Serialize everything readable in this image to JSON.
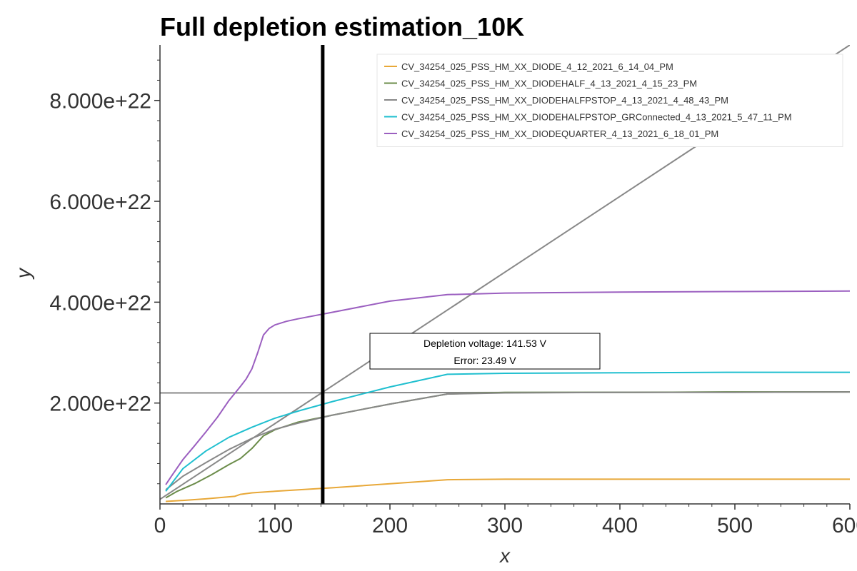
{
  "chart_data": {
    "type": "line",
    "title": "Full depletion estimation_10K",
    "xlabel": "x",
    "ylabel": "y",
    "xlim": [
      0,
      600
    ],
    "ylim": [
      0,
      9.1e+22
    ],
    "x_ticks": [
      {
        "value": 0,
        "label": "0"
      },
      {
        "value": 100,
        "label": "100"
      },
      {
        "value": 200,
        "label": "200"
      },
      {
        "value": 300,
        "label": "300"
      },
      {
        "value": 400,
        "label": "400"
      },
      {
        "value": 500,
        "label": "500"
      },
      {
        "value": 600,
        "label": "600"
      }
    ],
    "y_ticks": [
      {
        "value": 2e+22,
        "label": "2.000e+22"
      },
      {
        "value": 4e+22,
        "label": "4.000e+22"
      },
      {
        "value": 6e+22,
        "label": "6.000e+22"
      },
      {
        "value": 8e+22,
        "label": "8.000e+22"
      }
    ],
    "legend_position": "top-right",
    "grid": false,
    "series": [
      {
        "name": "CV_34254_025_PSS_HM_XX_DIODE_4_12_2021_6_14_04_PM",
        "color": "#e8a838",
        "x": [
          5,
          20,
          40,
          55,
          65,
          70,
          80,
          100,
          150,
          200,
          250,
          300,
          400,
          500,
          600
        ],
        "y": [
          5e+20,
          7e+20,
          1e+21,
          1.3e+21,
          1.5e+21,
          1.9e+21,
          2.2e+21,
          2.5e+21,
          3.2e+21,
          4e+21,
          4.8e+21,
          4.9e+21,
          4.9e+21,
          4.9e+21,
          4.9e+21
        ]
      },
      {
        "name": "CV_34254_025_PSS_HM_XX_DIODEHALF_4_13_2021_4_15_23_PM",
        "color": "#6b8c4a",
        "x": [
          5,
          15,
          30,
          45,
          60,
          70,
          80,
          90,
          100,
          120,
          150,
          200,
          250,
          300,
          400,
          500,
          600
        ],
        "y": [
          1.2e+21,
          2.5e+21,
          4e+21,
          5.8e+21,
          7.8e+21,
          9e+21,
          1.1e+22,
          1.35e+22,
          1.47e+22,
          1.62e+22,
          1.76e+22,
          1.98e+22,
          2.18e+22,
          2.21e+22,
          2.21e+22,
          2.22e+22,
          2.22e+22
        ]
      },
      {
        "name": "CV_34254_025_PSS_HM_XX_DIODEHALFPSTOP_4_13_2021_4_48_43_PM",
        "color": "#888888",
        "x": [
          5,
          20,
          40,
          60,
          80,
          100,
          120,
          150,
          200,
          250,
          300,
          400,
          500,
          600
        ],
        "y": [
          2.8e+21,
          5.5e+21,
          8.2e+21,
          1.08e+22,
          1.3e+22,
          1.48e+22,
          1.6e+22,
          1.76e+22,
          1.98e+22,
          2.18e+22,
          2.2e+22,
          2.21e+22,
          2.21e+22,
          2.22e+22
        ]
      },
      {
        "name": "CV_34254_025_PSS_HM_XX_DIODEHALFPSTOP_GRConnected_4_13_2021_5_47_11_PM",
        "color": "#1fbfcf",
        "x": [
          5,
          20,
          40,
          60,
          80,
          100,
          120,
          150,
          200,
          250,
          300,
          400,
          500,
          600
        ],
        "y": [
          2.5e+21,
          7e+21,
          1.05e+22,
          1.32e+22,
          1.52e+22,
          1.7e+22,
          1.84e+22,
          2.03e+22,
          2.32e+22,
          2.57e+22,
          2.59e+22,
          2.6e+22,
          2.61e+22,
          2.61e+22
        ]
      },
      {
        "name": "CV_34254_025_PSS_HM_XX_DIODEQUARTER_4_13_2021_6_18_01_PM",
        "color": "#9b5fc0",
        "x": [
          5,
          10,
          20,
          30,
          40,
          50,
          60,
          70,
          75,
          80,
          85,
          90,
          95,
          100,
          110,
          120,
          150,
          200,
          250,
          300,
          400,
          500,
          600
        ],
        "y": [
          3.8e+21,
          5.5e+21,
          8.8e+21,
          1.15e+22,
          1.43e+22,
          1.72e+22,
          2.05e+22,
          2.33e+22,
          2.48e+22,
          2.68e+22,
          3e+22,
          3.35e+22,
          3.48e+22,
          3.55e+22,
          3.62e+22,
          3.67e+22,
          3.8e+22,
          4.02e+22,
          4.15e+22,
          4.18e+22,
          4.2e+22,
          4.21e+22,
          4.22e+22
        ]
      }
    ],
    "fit_lines": [
      {
        "color": "#888888",
        "x": [
          0,
          600
        ],
        "y": [
          2.2e+22,
          2.22e+22
        ]
      },
      {
        "color": "#888888",
        "x": [
          -40,
          600
        ],
        "y": [
          -5.1e+21,
          9.1e+22
        ]
      }
    ],
    "vertical_line": {
      "x": 141.53,
      "color": "#000000"
    },
    "annotation": {
      "line1": "Depletion voltage: 141.53 V",
      "line2": "Error: 23.49 V"
    }
  }
}
